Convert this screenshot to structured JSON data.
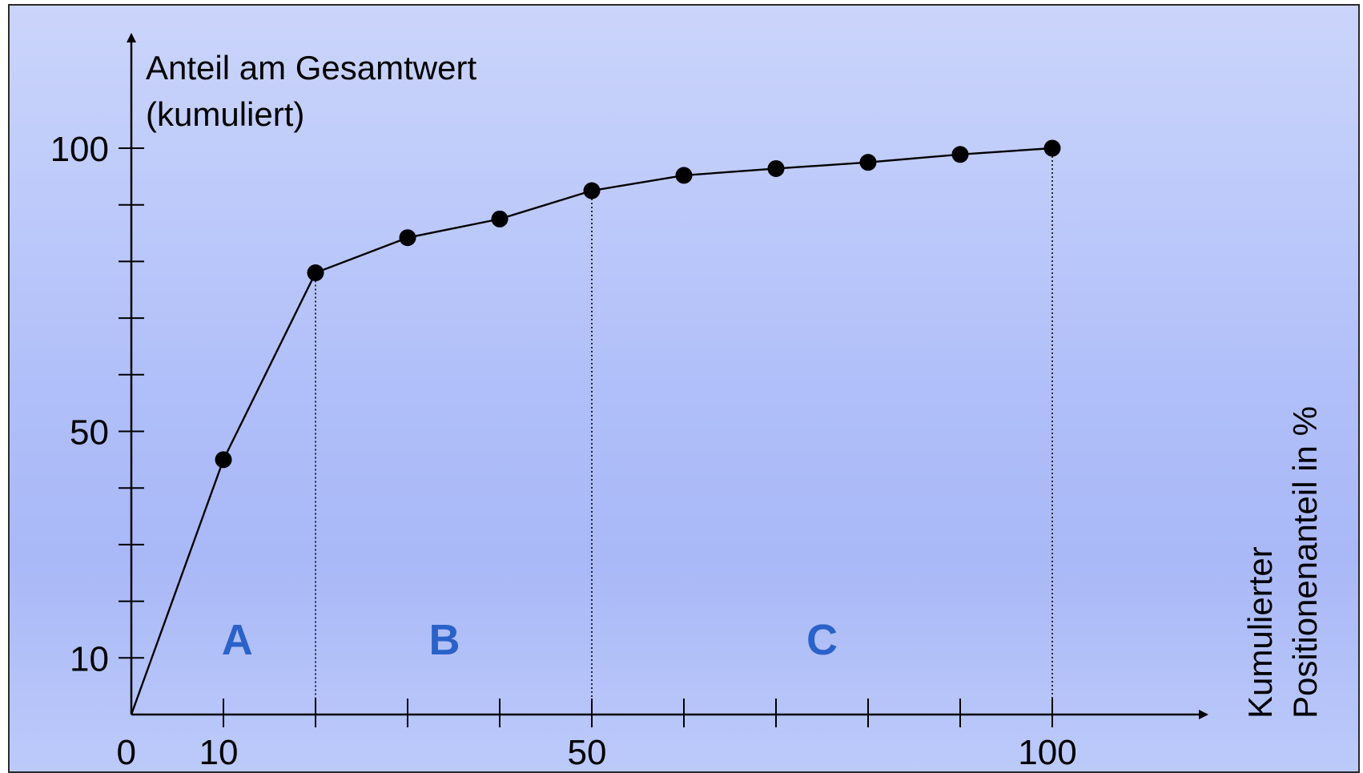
{
  "chart_data": {
    "type": "line",
    "ylabel_line1": "Anteil am Gesamtwert",
    "ylabel_line2": "(kumuliert)",
    "xlabel_line1": "Kumulierter",
    "xlabel_line2": "Positionenanteil in %",
    "x_tick_labels": [
      {
        "value": 0,
        "label": "0"
      },
      {
        "value": 10,
        "label": "10"
      },
      {
        "value": 50,
        "label": "50"
      },
      {
        "value": 100,
        "label": "100"
      }
    ],
    "y_tick_labels": [
      {
        "value": 10,
        "label": "10"
      },
      {
        "value": 50,
        "label": "50"
      },
      {
        "value": 100,
        "label": "100"
      }
    ],
    "x_ticks": [
      10,
      20,
      30,
      40,
      50,
      60,
      70,
      80,
      90,
      100
    ],
    "y_ticks": [
      10,
      20,
      30,
      40,
      50,
      60,
      70,
      80,
      90,
      100
    ],
    "xlim": [
      0,
      110
    ],
    "ylim": [
      0,
      118
    ],
    "series": [
      {
        "x": [
          0,
          10,
          20,
          30,
          40,
          50,
          60,
          70,
          80,
          90,
          100
        ],
        "y": [
          0,
          45,
          78,
          84.2,
          87.5,
          92.5,
          95.2,
          96.4,
          97.5,
          98.9,
          100
        ]
      }
    ],
    "boundaries": [
      20,
      50,
      100
    ],
    "classes": [
      {
        "label": "A",
        "x": 11.5
      },
      {
        "label": "B",
        "x": 34
      },
      {
        "label": "C",
        "x": 75
      }
    ],
    "class_color": "#2a62c9",
    "line_color": "#000000"
  }
}
